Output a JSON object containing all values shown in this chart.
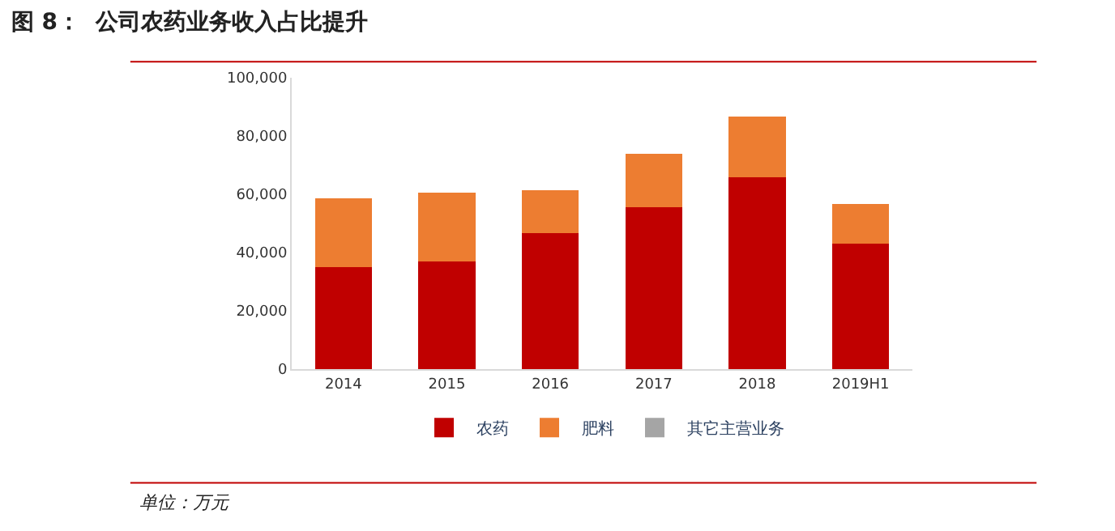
{
  "chart_data": {
    "type": "bar",
    "title": "图 8：  公司农药业务收入占比提升",
    "categories": [
      "2014",
      "2015",
      "2016",
      "2017",
      "2018",
      "2019H1"
    ],
    "stacked": true,
    "series": [
      {
        "name": "农药",
        "color": "#c00000",
        "values": [
          35000,
          37000,
          46600,
          55600,
          65800,
          43000
        ]
      },
      {
        "name": "肥料",
        "color": "#ed7d31",
        "values": [
          23600,
          23600,
          14800,
          18200,
          21000,
          13800
        ]
      },
      {
        "name": "其它主营业务",
        "color": "#a5a5a5",
        "values": [
          0,
          0,
          0,
          0,
          0,
          0
        ]
      }
    ],
    "ylim": [
      0,
      100000
    ],
    "yticks": [
      {
        "value": 0,
        "label": "0"
      },
      {
        "value": 20000,
        "label": "20,000"
      },
      {
        "value": 40000,
        "label": "40,000"
      },
      {
        "value": 60000,
        "label": "60,000"
      },
      {
        "value": 80000,
        "label": "80,000"
      },
      {
        "value": 100000,
        "label": "100,000"
      }
    ],
    "legend": "bottom",
    "annotations": [
      "单位：万元"
    ]
  }
}
